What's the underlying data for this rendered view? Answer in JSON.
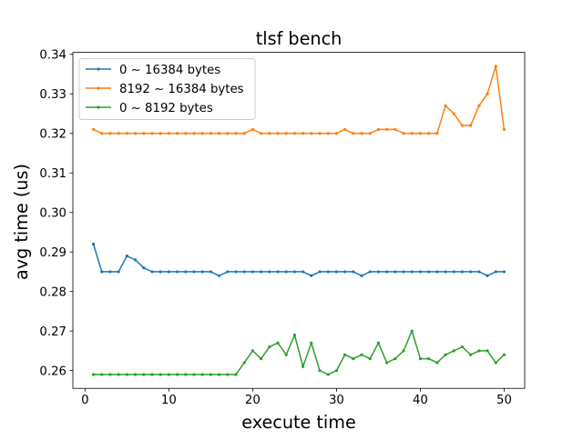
{
  "chart_data": {
    "type": "line",
    "title": "tlsf bench",
    "xlabel": "execute time",
    "ylabel": "avg time (us)",
    "xlim": [
      -1.45,
      52.45
    ],
    "ylim": [
      0.2555,
      0.3405
    ],
    "xticks": [
      0,
      10,
      20,
      30,
      40,
      50
    ],
    "yticks": [
      0.26,
      0.27,
      0.28,
      0.29,
      0.3,
      0.31,
      0.32,
      0.33,
      0.34
    ],
    "ytick_labels": [
      "0.26",
      "0.27",
      "0.28",
      "0.29",
      "0.30",
      "0.31",
      "0.32",
      "0.33",
      "0.34"
    ],
    "grid": false,
    "legend_position": "upper-left",
    "x": [
      1,
      2,
      3,
      4,
      5,
      6,
      7,
      8,
      9,
      10,
      11,
      12,
      13,
      14,
      15,
      16,
      17,
      18,
      19,
      20,
      21,
      22,
      23,
      24,
      25,
      26,
      27,
      28,
      29,
      30,
      31,
      32,
      33,
      34,
      35,
      36,
      37,
      38,
      39,
      40,
      41,
      42,
      43,
      44,
      45,
      46,
      47,
      48,
      49,
      50
    ],
    "series": [
      {
        "name": "0 ~ 16384 bytes",
        "color": "#1f77b4",
        "values": [
          0.292,
          0.285,
          0.285,
          0.285,
          0.289,
          0.288,
          0.286,
          0.285,
          0.285,
          0.285,
          0.285,
          0.285,
          0.285,
          0.285,
          0.285,
          0.284,
          0.285,
          0.285,
          0.285,
          0.285,
          0.285,
          0.285,
          0.285,
          0.285,
          0.285,
          0.285,
          0.284,
          0.285,
          0.285,
          0.285,
          0.285,
          0.285,
          0.284,
          0.285,
          0.285,
          0.285,
          0.285,
          0.285,
          0.285,
          0.285,
          0.285,
          0.285,
          0.285,
          0.285,
          0.285,
          0.285,
          0.285,
          0.284,
          0.285,
          0.285
        ]
      },
      {
        "name": "8192 ~ 16384 bytes",
        "color": "#ff7f0e",
        "values": [
          0.321,
          0.32,
          0.32,
          0.32,
          0.32,
          0.32,
          0.32,
          0.32,
          0.32,
          0.32,
          0.32,
          0.32,
          0.32,
          0.32,
          0.32,
          0.32,
          0.32,
          0.32,
          0.32,
          0.321,
          0.32,
          0.32,
          0.32,
          0.32,
          0.32,
          0.32,
          0.32,
          0.32,
          0.32,
          0.32,
          0.321,
          0.32,
          0.32,
          0.32,
          0.321,
          0.321,
          0.321,
          0.32,
          0.32,
          0.32,
          0.32,
          0.32,
          0.327,
          0.325,
          0.322,
          0.322,
          0.327,
          0.33,
          0.337,
          0.321
        ]
      },
      {
        "name": "0 ~ 8192 bytes",
        "color": "#2ca02c",
        "values": [
          0.259,
          0.259,
          0.259,
          0.259,
          0.259,
          0.259,
          0.259,
          0.259,
          0.259,
          0.259,
          0.259,
          0.259,
          0.259,
          0.259,
          0.259,
          0.259,
          0.259,
          0.259,
          0.262,
          0.265,
          0.263,
          0.266,
          0.267,
          0.264,
          0.269,
          0.261,
          0.267,
          0.26,
          0.259,
          0.26,
          0.264,
          0.263,
          0.264,
          0.263,
          0.267,
          0.262,
          0.263,
          0.265,
          0.27,
          0.263,
          0.263,
          0.262,
          0.264,
          0.265,
          0.266,
          0.264,
          0.265,
          0.265,
          0.262,
          0.264
        ]
      }
    ]
  }
}
